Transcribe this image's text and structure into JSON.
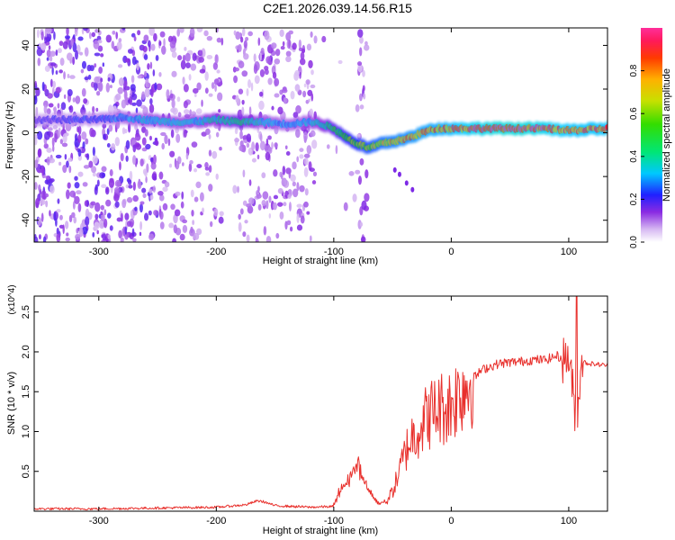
{
  "figure_title": "C2E1.2026.039.14.56.R15",
  "chart_data": [
    {
      "type": "heatmap",
      "title": "C2E1.2026.039.14.56.R15",
      "xlabel": "Height of straight line (km)",
      "ylabel": "Frequency (Hz)",
      "xlim": [
        -355,
        133
      ],
      "ylim": [
        -50,
        48
      ],
      "xticks": [
        -300,
        -200,
        -100,
        0,
        100
      ],
      "xtick_labels": [
        "-300",
        "-200",
        "-100",
        "0",
        "100"
      ],
      "yticks": [
        -40,
        -20,
        0,
        20,
        40
      ],
      "ytick_labels": [
        "-40",
        "-20",
        "0",
        "20",
        "40"
      ],
      "colorbar": {
        "label": "Normalized spectral amplitude",
        "range": [
          0.0,
          1.0
        ],
        "ticks": [
          0.0,
          0.2,
          0.4,
          0.6,
          0.8
        ],
        "tick_labels": [
          "0.0",
          "0.2",
          "0.4",
          "0.6",
          "0.8"
        ]
      },
      "ridge": {
        "name": "dominant frequency",
        "x": [
          -355,
          -300,
          -280,
          -260,
          -240,
          -220,
          -200,
          -180,
          -160,
          -140,
          -120,
          -110,
          -100,
          -90,
          -80,
          -70,
          -60,
          -50,
          -40,
          -30,
          -20,
          -10,
          0,
          20,
          40,
          60,
          80,
          100,
          133
        ],
        "y": [
          6,
          6,
          7,
          6,
          5,
          5,
          6,
          5,
          5,
          4,
          5,
          4,
          2,
          -2,
          -5,
          -7,
          -5,
          -4,
          -3,
          -1,
          1,
          2,
          2,
          2,
          2,
          2,
          2,
          1,
          2
        ],
        "amplitude": [
          0.2,
          0.25,
          0.3,
          0.35,
          0.35,
          0.35,
          0.4,
          0.45,
          0.35,
          0.3,
          0.35,
          0.4,
          0.5,
          0.6,
          0.65,
          0.7,
          0.75,
          0.78,
          0.8,
          0.82,
          0.85,
          0.85,
          0.88,
          0.95,
          1.0,
          1.0,
          0.95,
          0.9,
          0.9
        ]
      }
    },
    {
      "type": "line",
      "xlabel": "Height of straight line (km)",
      "ylabel": "SNR (10 * v/v)",
      "y_scale_label": "(x10^4)",
      "xlim": [
        -355,
        133
      ],
      "ylim": [
        0.0,
        2.7
      ],
      "xticks": [
        -300,
        -200,
        -100,
        0,
        100
      ],
      "xtick_labels": [
        "-300",
        "-200",
        "-100",
        "0",
        "100"
      ],
      "yticks": [
        0.5,
        1.0,
        1.5,
        2.0,
        2.5
      ],
      "ytick_labels": [
        "0.5",
        "1.0",
        "1.5",
        "2.0",
        "2.5"
      ],
      "series": [
        {
          "name": "SNR",
          "color": "#e8302c",
          "x": [
            -355,
            -300,
            -250,
            -200,
            -175,
            -165,
            -160,
            -150,
            -120,
            -100,
            -95,
            -90,
            -85,
            -80,
            -75,
            -70,
            -65,
            -60,
            -55,
            -50,
            -45,
            -40,
            -35,
            -30,
            -25,
            -20,
            -15,
            -10,
            -5,
            0,
            5,
            10,
            15,
            20,
            25,
            30,
            40,
            50,
            60,
            70,
            80,
            90,
            95,
            100,
            105,
            108,
            110,
            115,
            120,
            133
          ],
          "y": [
            0.03,
            0.03,
            0.04,
            0.05,
            0.08,
            0.13,
            0.12,
            0.07,
            0.05,
            0.06,
            0.25,
            0.35,
            0.45,
            0.6,
            0.4,
            0.25,
            0.15,
            0.1,
            0.12,
            0.25,
            0.45,
            0.7,
            0.9,
            1.0,
            1.1,
            1.2,
            1.25,
            1.3,
            1.3,
            1.35,
            1.45,
            1.55,
            1.6,
            1.68,
            1.76,
            1.8,
            1.85,
            1.87,
            1.88,
            1.9,
            1.9,
            1.95,
            1.9,
            1.95,
            1.3,
            1.2,
            1.9,
            1.86,
            1.85,
            1.83
          ]
        }
      ]
    }
  ]
}
